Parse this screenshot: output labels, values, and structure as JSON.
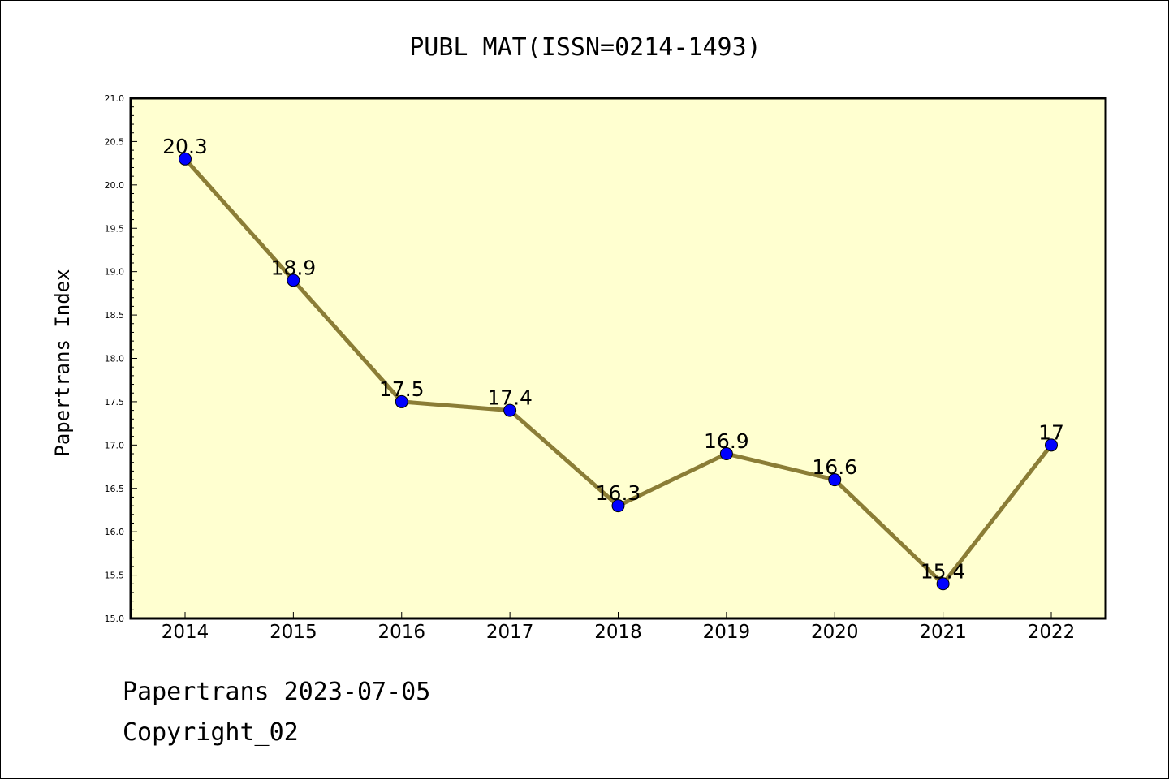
{
  "chart_data": {
    "type": "line",
    "title": "PUBL MAT(ISSN=0214-1493)",
    "xlabel": "",
    "ylabel": "Papertrans Index",
    "categories": [
      "2014",
      "2015",
      "2016",
      "2017",
      "2018",
      "2019",
      "2020",
      "2021",
      "2022"
    ],
    "series": [
      {
        "values": [
          20.3,
          18.9,
          17.5,
          17.4,
          16.3,
          16.9,
          16.6,
          15.4,
          17
        ],
        "data_labels": [
          "20.3",
          "18.9",
          "17.5",
          "17.4",
          "16.3",
          "16.9",
          "16.6",
          "15.4",
          "17"
        ],
        "line_color": "#8b7d36",
        "marker_color": "#0000ff"
      }
    ],
    "ylim": [
      15.0,
      21.0
    ],
    "yticks": [
      "15.0",
      "15.5",
      "16.0",
      "16.5",
      "17.0",
      "17.5",
      "18.0",
      "18.5",
      "19.0",
      "19.5",
      "20.0",
      "20.5",
      "21.0"
    ],
    "grid": false,
    "plot_background": "#ffffd0"
  },
  "footer": {
    "line1": "Papertrans 2023-07-05",
    "line2": "Copyright_02"
  }
}
